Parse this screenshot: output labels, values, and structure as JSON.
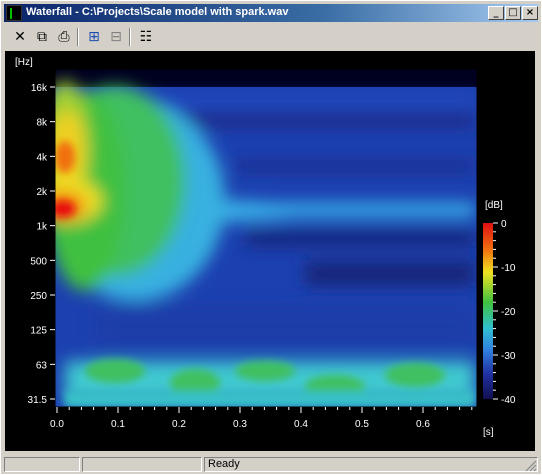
{
  "window": {
    "title": "Waterfall - C:\\Projects\\Scale model with spark.wav",
    "controls": {
      "minimize": "_",
      "maximize": "□",
      "close": "×"
    }
  },
  "toolbar": {
    "items": [
      {
        "name": "close-tool",
        "icon": "close-x-icon",
        "glyph": "✕"
      },
      {
        "name": "copy-tool",
        "icon": "copy-icon",
        "glyph": "⧉"
      },
      {
        "name": "print-tool",
        "icon": "printer-icon",
        "glyph": "⎙"
      },
      {
        "name": "fit-tool",
        "icon": "zoom-fit-icon",
        "glyph": "⊞"
      },
      {
        "name": "zoom-tool",
        "icon": "zoom-icon",
        "glyph": "⊟"
      },
      {
        "name": "properties-tool",
        "icon": "properties-icon",
        "glyph": "☷"
      }
    ]
  },
  "plot": {
    "y_unit": "[Hz]",
    "y_ticks": [
      "16k",
      "8k",
      "4k",
      "2k",
      "1k",
      "500",
      "250",
      "125",
      "63",
      "31.5"
    ],
    "x_unit": "[s]",
    "x_ticks": [
      "0.0",
      "0.1",
      "0.2",
      "0.3",
      "0.4",
      "0.5",
      "0.6"
    ],
    "colorbar_unit": "[dB]",
    "colorbar_ticks": [
      "0",
      "-10",
      "-20",
      "-30",
      "-40"
    ],
    "colors": {
      "background": "#000000",
      "hot": "#e8101a",
      "warm": "#f5e81e",
      "mid": "#3cc84a",
      "cool": "#37a8e0",
      "low": "#2040b0",
      "floor": "#101060"
    }
  },
  "status": {
    "text": "Ready"
  }
}
